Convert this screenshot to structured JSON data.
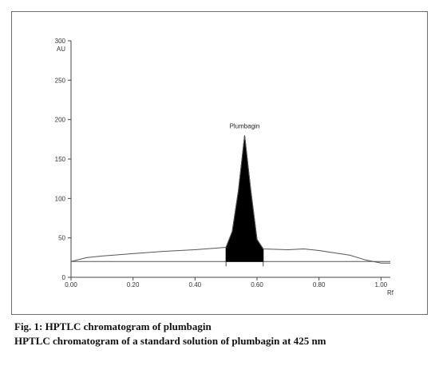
{
  "chart_data": {
    "type": "line",
    "x": [
      0.0,
      0.05,
      0.1,
      0.2,
      0.3,
      0.4,
      0.5,
      0.52,
      0.54,
      0.56,
      0.58,
      0.6,
      0.62,
      0.7,
      0.75,
      0.8,
      0.9,
      0.95,
      1.0,
      1.03
    ],
    "y": [
      20,
      25,
      27,
      30,
      33,
      35,
      38,
      58,
      110,
      180,
      110,
      48,
      36,
      35,
      36,
      34,
      28,
      22,
      18,
      18
    ],
    "baseline": 20,
    "peak": {
      "label": "Plumbagin",
      "x": 0.56,
      "y": 180,
      "start": 0.5,
      "end": 0.62
    },
    "xlim": [
      0.0,
      1.03
    ],
    "ylim": [
      0,
      300
    ],
    "x_ticks": [
      0.0,
      0.2,
      0.4,
      0.6,
      0.8,
      1.0
    ],
    "x_tick_labels": [
      "0.00",
      "0.20",
      "0.40",
      "0.60",
      "0.80",
      "1.00"
    ],
    "y_ticks": [
      0,
      50,
      100,
      150,
      200,
      250,
      300
    ],
    "y_tick_labels": [
      "0",
      "50",
      "100",
      "150",
      "200",
      "250",
      "300"
    ],
    "xlabel": "Rf",
    "ylabel": "AU",
    "grid": false,
    "colors": {
      "line": "#555555",
      "peak_fill": "#000000"
    }
  },
  "captions": {
    "figure_title": "Fig. 1: HPTLC chromatogram of plumbagin",
    "description": "HPTLC chromatogram of a standard solution of plumbagin at 425 nm"
  }
}
